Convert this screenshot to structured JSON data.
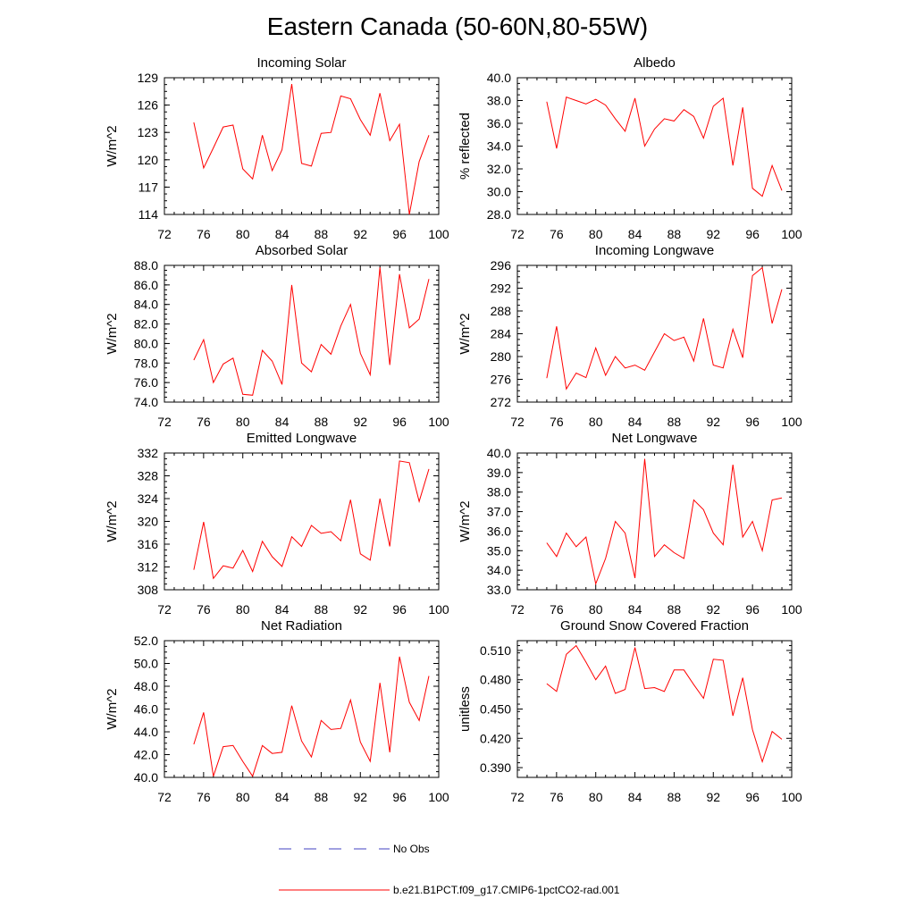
{
  "title": "Eastern Canada (50-60N,80-55W)",
  "colors": {
    "model_line": "#ff0000",
    "obs_line": "#4040c0",
    "frame": "#000000"
  },
  "legend": {
    "entries": [
      {
        "label": "No Obs",
        "style": "dashed",
        "color": "#4040c0"
      },
      {
        "label": "b.e21.B1PCT.f09_g17.CMIP6-1pctCO2-rad.001",
        "style": "solid",
        "color": "#ff0000"
      }
    ]
  },
  "chart_data": [
    {
      "type": "line",
      "title": "Incoming Solar",
      "ylabel": "W/m^2",
      "xlabel": "",
      "xlim": [
        72,
        100
      ],
      "ylim": [
        114,
        129
      ],
      "xticks": [
        "72",
        "76",
        "80",
        "84",
        "88",
        "92",
        "96",
        "100"
      ],
      "yticks": [
        "114",
        "117",
        "120",
        "123",
        "126",
        "129"
      ],
      "x": [
        75,
        76,
        77,
        78,
        79,
        80,
        81,
        82,
        83,
        84,
        85,
        86,
        87,
        88,
        89,
        90,
        91,
        92,
        93,
        94,
        95,
        96,
        97,
        98,
        99
      ],
      "series": [
        {
          "values": [
            124.1,
            119.1,
            121.3,
            123.6,
            123.8,
            119.0,
            117.9,
            122.7,
            118.8,
            121.1,
            128.3,
            119.6,
            119.3,
            122.9,
            123.0,
            127.0,
            126.7,
            124.4,
            122.7,
            127.3,
            122.1,
            123.9,
            114.0,
            119.8,
            122.7
          ]
        }
      ]
    },
    {
      "type": "line",
      "title": "Albedo",
      "ylabel": "% reflected",
      "xlabel": "",
      "xlim": [
        72,
        100
      ],
      "ylim": [
        28.0,
        40.0
      ],
      "xticks": [
        "72",
        "76",
        "80",
        "84",
        "88",
        "92",
        "96",
        "100"
      ],
      "yticks": [
        "28.0",
        "30.0",
        "32.0",
        "34.0",
        "36.0",
        "38.0",
        "40.0"
      ],
      "x": [
        75,
        76,
        77,
        78,
        79,
        80,
        81,
        82,
        83,
        84,
        85,
        86,
        87,
        88,
        89,
        90,
        91,
        92,
        93,
        94,
        95,
        96,
        97,
        98,
        99
      ],
      "series": [
        {
          "values": [
            37.9,
            33.8,
            38.3,
            38.0,
            37.7,
            38.1,
            37.6,
            36.4,
            35.3,
            38.2,
            34.0,
            35.5,
            36.4,
            36.2,
            37.2,
            36.6,
            34.7,
            37.5,
            38.2,
            32.3,
            37.4,
            30.3,
            29.6,
            32.3,
            30.1
          ]
        }
      ]
    },
    {
      "type": "line",
      "title": "Absorbed Solar",
      "ylabel": "W/m^2",
      "xlabel": "",
      "xlim": [
        72,
        100
      ],
      "ylim": [
        74.0,
        88.0
      ],
      "xticks": [
        "72",
        "76",
        "80",
        "84",
        "88",
        "92",
        "96",
        "100"
      ],
      "yticks": [
        "74.0",
        "76.0",
        "78.0",
        "80.0",
        "82.0",
        "84.0",
        "86.0",
        "88.0"
      ],
      "x": [
        75,
        76,
        77,
        78,
        79,
        80,
        81,
        82,
        83,
        84,
        85,
        86,
        87,
        88,
        89,
        90,
        91,
        92,
        93,
        94,
        95,
        96,
        97,
        98,
        99
      ],
      "series": [
        {
          "values": [
            78.3,
            80.4,
            76.0,
            77.9,
            78.5,
            74.8,
            74.7,
            79.3,
            78.2,
            75.8,
            86.0,
            78.0,
            77.1,
            79.9,
            78.9,
            81.8,
            84.0,
            79.0,
            76.8,
            87.8,
            77.8,
            87.1,
            81.6,
            82.5,
            86.6
          ]
        }
      ]
    },
    {
      "type": "line",
      "title": "Incoming Longwave",
      "ylabel": "W/m^2",
      "xlabel": "",
      "xlim": [
        72,
        100
      ],
      "ylim": [
        272,
        296
      ],
      "xticks": [
        "72",
        "76",
        "80",
        "84",
        "88",
        "92",
        "96",
        "100"
      ],
      "yticks": [
        "272",
        "276",
        "280",
        "284",
        "288",
        "292",
        "296"
      ],
      "x": [
        75,
        76,
        77,
        78,
        79,
        80,
        81,
        82,
        83,
        84,
        85,
        86,
        87,
        88,
        89,
        90,
        91,
        92,
        93,
        94,
        95,
        96,
        97,
        98,
        99
      ],
      "series": [
        {
          "values": [
            276.2,
            285.3,
            274.3,
            277.1,
            276.3,
            281.5,
            276.7,
            280.0,
            278.0,
            278.5,
            277.6,
            280.8,
            284.0,
            282.8,
            283.4,
            279.2,
            286.7,
            278.5,
            278.0,
            284.8,
            279.8,
            294.2,
            295.6,
            285.8,
            291.8
          ]
        }
      ]
    },
    {
      "type": "line",
      "title": "Emitted Longwave",
      "ylabel": "W/m^2",
      "xlabel": "",
      "xlim": [
        72,
        100
      ],
      "ylim": [
        308,
        332
      ],
      "xticks": [
        "72",
        "76",
        "80",
        "84",
        "88",
        "92",
        "96",
        "100"
      ],
      "yticks": [
        "308",
        "312",
        "316",
        "320",
        "324",
        "328",
        "332"
      ],
      "x": [
        75,
        76,
        77,
        78,
        79,
        80,
        81,
        82,
        83,
        84,
        85,
        86,
        87,
        88,
        89,
        90,
        91,
        92,
        93,
        94,
        95,
        96,
        97,
        98,
        99
      ],
      "series": [
        {
          "values": [
            311.5,
            319.9,
            310.0,
            312.2,
            311.8,
            314.9,
            311.2,
            316.5,
            313.8,
            312.1,
            317.3,
            315.6,
            319.3,
            317.9,
            318.2,
            316.6,
            323.8,
            314.3,
            313.2,
            324.0,
            315.6,
            330.6,
            330.3,
            323.5,
            329.2
          ]
        }
      ]
    },
    {
      "type": "line",
      "title": "Net Longwave",
      "ylabel": "W/m^2",
      "xlabel": "",
      "xlim": [
        72,
        100
      ],
      "ylim": [
        33.0,
        40.0
      ],
      "xticks": [
        "72",
        "76",
        "80",
        "84",
        "88",
        "92",
        "96",
        "100"
      ],
      "yticks": [
        "33.0",
        "34.0",
        "35.0",
        "36.0",
        "37.0",
        "38.0",
        "39.0",
        "40.0"
      ],
      "x": [
        75,
        76,
        77,
        78,
        79,
        80,
        81,
        82,
        83,
        84,
        85,
        86,
        87,
        88,
        89,
        90,
        91,
        92,
        93,
        94,
        95,
        96,
        97,
        98,
        99
      ],
      "series": [
        {
          "values": [
            35.4,
            34.7,
            35.9,
            35.2,
            35.7,
            33.3,
            34.6,
            36.5,
            35.9,
            33.6,
            39.7,
            34.7,
            35.3,
            34.9,
            34.6,
            37.6,
            37.1,
            35.9,
            35.3,
            39.4,
            35.7,
            36.5,
            35.0,
            37.6,
            37.7
          ]
        }
      ]
    },
    {
      "type": "line",
      "title": "Net Radiation",
      "ylabel": "W/m^2",
      "xlabel": "",
      "xlim": [
        72,
        100
      ],
      "ylim": [
        40.0,
        52.0
      ],
      "xticks": [
        "72",
        "76",
        "80",
        "84",
        "88",
        "92",
        "96",
        "100"
      ],
      "yticks": [
        "40.0",
        "42.0",
        "44.0",
        "46.0",
        "48.0",
        "50.0",
        "52.0"
      ],
      "x": [
        75,
        76,
        77,
        78,
        79,
        80,
        81,
        82,
        83,
        84,
        85,
        86,
        87,
        88,
        89,
        90,
        91,
        92,
        93,
        94,
        95,
        96,
        97,
        98,
        99
      ],
      "series": [
        {
          "values": [
            42.9,
            45.7,
            40.1,
            42.7,
            42.8,
            41.4,
            40.1,
            42.8,
            42.1,
            42.2,
            46.3,
            43.2,
            41.8,
            45.0,
            44.2,
            44.3,
            46.8,
            43.1,
            41.4,
            48.3,
            42.2,
            50.6,
            46.6,
            45.0,
            48.9
          ]
        }
      ]
    },
    {
      "type": "line",
      "title": "Ground Snow Covered Fraction",
      "ylabel": "unitless",
      "xlabel": "",
      "xlim": [
        72,
        100
      ],
      "ylim": [
        0.38,
        0.52
      ],
      "xticks": [
        "72",
        "76",
        "80",
        "84",
        "88",
        "92",
        "96",
        "100"
      ],
      "yticks": [
        "0.390",
        "0.420",
        "0.450",
        "0.480",
        "0.510"
      ],
      "yticks_values": [
        0.39,
        0.42,
        0.45,
        0.48,
        0.51
      ],
      "x": [
        75,
        76,
        77,
        78,
        79,
        80,
        81,
        82,
        83,
        84,
        85,
        86,
        87,
        88,
        89,
        90,
        91,
        92,
        93,
        94,
        95,
        96,
        97,
        98,
        99
      ],
      "series": [
        {
          "values": [
            0.476,
            0.468,
            0.506,
            0.515,
            0.498,
            0.48,
            0.494,
            0.466,
            0.47,
            0.513,
            0.471,
            0.472,
            0.468,
            0.49,
            0.49,
            0.475,
            0.461,
            0.501,
            0.5,
            0.443,
            0.482,
            0.429,
            0.396,
            0.427,
            0.419
          ]
        }
      ]
    }
  ]
}
